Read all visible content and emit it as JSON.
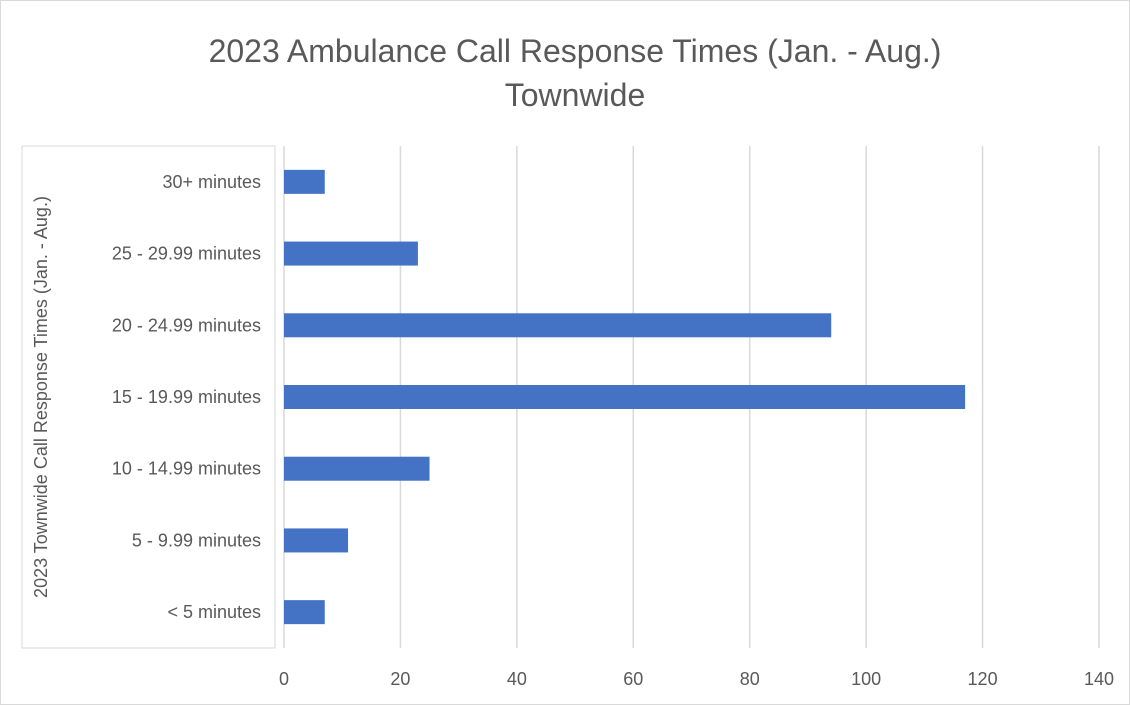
{
  "chart_data": {
    "type": "bar",
    "orientation": "horizontal",
    "title": "2023 Ambulance Call Response Times (Jan. - Aug.)",
    "subtitle": "Townwide",
    "xlabel": "",
    "ylabel": "2023 Townwide Call Response Times (Jan. - Aug.)",
    "categories": [
      "< 5 minutes",
      "5 - 9.99 minutes",
      "10 - 14.99 minutes",
      "15 - 19.99 minutes",
      "20 - 24.99 minutes",
      "25 - 29.99 minutes",
      "30+ minutes"
    ],
    "values": [
      7,
      11,
      25,
      117,
      94,
      23,
      7
    ],
    "xlim": [
      0,
      140
    ],
    "xticks": [
      "0",
      "20",
      "40",
      "60",
      "80",
      "100",
      "120",
      "140"
    ],
    "grid": "vertical",
    "legend": "none",
    "bar_color": "#4472C4",
    "grid_color": "#D9D9D9"
  }
}
